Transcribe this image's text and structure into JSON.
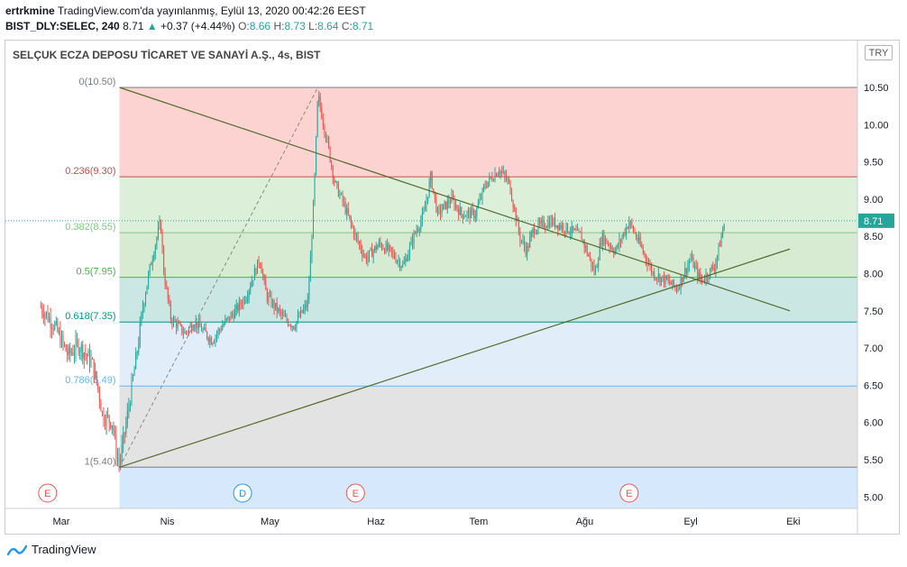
{
  "header": {
    "author": "ertrkmine",
    "published": "TradingView.com'da yayınlanmış, Eylül 13, 2020 00:42:26 EEST",
    "symbol": "BIST_DLY:SELEC, 240",
    "last": "8.71",
    "change_arrow": "▲",
    "change": "+0.37 (+4.44%)",
    "o_label": "O:",
    "o_value": "8.66",
    "h_label": "H:",
    "h_value": "8.73",
    "l_label": "L:",
    "l_value": "8.64",
    "c_label": "C:",
    "c_value": "8.71"
  },
  "chart_title": "SELÇUK ECZA DEPOSU TİCARET VE SANAYİ A.Ş., 4s, BIST",
  "currency_button": "TRY",
  "footer": {
    "brand": "TradingView"
  },
  "colors": {
    "up": "#26a69a",
    "down": "#ef5350",
    "trendline": "#556b2f"
  },
  "chart_data": {
    "type": "candlestick",
    "x_ticks": [
      "Mar",
      "Nis",
      "May",
      "Haz",
      "Tem",
      "Ağu",
      "Eyl",
      "Eki"
    ],
    "y_ticks": [
      "5.00",
      "5.50",
      "6.00",
      "6.50",
      "7.00",
      "7.50",
      "8.00",
      "8.50",
      "9.00",
      "9.50",
      "10.00",
      "10.50"
    ],
    "ylim": [
      4.9,
      10.75
    ],
    "last_price": "8.71",
    "fibonacci": [
      {
        "label": "0(10.50)",
        "price": 10.5,
        "line": "#787b86",
        "band": "#fcd3d0"
      },
      {
        "label": "0.236(9.30)",
        "price": 9.3,
        "line": "#c0504d",
        "band": "#dcefd9"
      },
      {
        "label": "0.382(8.55)",
        "price": 8.55,
        "line": "#81c784",
        "band": "#d7ebd2"
      },
      {
        "label": "0.5(7.95)",
        "price": 7.95,
        "line": "#4caf50",
        "band": "#cbe7e3"
      },
      {
        "label": "0.618(7.35)",
        "price": 7.35,
        "line": "#009688",
        "band": "#e1eefa"
      },
      {
        "label": "0.786(6.49)",
        "price": 6.49,
        "line": "#64b5f6",
        "band": "#e3e3e3"
      },
      {
        "label": "1(5.40)",
        "price": 5.4,
        "line": "#787b86",
        "band": "#d6e8fb"
      }
    ],
    "trendlines": [
      {
        "from": [
          "Mar 18",
          10.5
        ],
        "to": [
          "Eyl 30",
          7.5
        ],
        "desc": "descending"
      },
      {
        "from": [
          "Mar 18",
          5.4
        ],
        "to": [
          "Eyl 30",
          8.33
        ],
        "desc": "ascending"
      }
    ],
    "events": [
      {
        "date": "Şub 26",
        "letter": "E"
      },
      {
        "date": "Nis 23",
        "letter": "D"
      },
      {
        "date": "May 26",
        "letter": "E"
      },
      {
        "date": "Ağu 14",
        "letter": "E"
      }
    ],
    "price_path": [
      [
        "Şub 24",
        7.55
      ],
      [
        "Şub 28",
        7.3
      ],
      [
        "Mar 3",
        6.9
      ],
      [
        "Mar 6",
        7.05
      ],
      [
        "Mar 10",
        6.8
      ],
      [
        "Mar 12",
        6.4
      ],
      [
        "Mar 13",
        6.1
      ],
      [
        "Mar 16",
        6.0
      ],
      [
        "Mar 17",
        5.6
      ],
      [
        "Mar 18",
        5.45
      ],
      [
        "Mar 20",
        6.0
      ],
      [
        "Mar 23",
        6.9
      ],
      [
        "Mar 25",
        7.6
      ],
      [
        "Mar 27",
        8.1
      ],
      [
        "Mar 30",
        8.7
      ],
      [
        "Mar 31",
        8.0
      ],
      [
        "Nis 2",
        7.4
      ],
      [
        "Nis 6",
        7.2
      ],
      [
        "Nis 9",
        7.35
      ],
      [
        "Nis 14",
        7.1
      ],
      [
        "Nis 17",
        7.3
      ],
      [
        "Nis 21",
        7.5
      ],
      [
        "Nis 24",
        7.7
      ],
      [
        "Nis 28",
        8.2
      ],
      [
        "Nis 30",
        7.7
      ],
      [
        "May 5",
        7.4
      ],
      [
        "May 8",
        7.3
      ],
      [
        "May 12",
        7.6
      ],
      [
        "May 13",
        8.3
      ],
      [
        "May 14",
        9.2
      ],
      [
        "May 15",
        10.4
      ],
      [
        "May 18",
        9.7
      ],
      [
        "May 20",
        9.2
      ],
      [
        "May 22",
        9.0
      ],
      [
        "May 26",
        8.5
      ],
      [
        "May 29",
        8.2
      ],
      [
        "Haz 2",
        8.4
      ],
      [
        "Haz 5",
        8.3
      ],
      [
        "Haz 9",
        8.1
      ],
      [
        "Haz 12",
        8.5
      ],
      [
        "Haz 15",
        8.8
      ],
      [
        "Haz 17",
        9.3
      ],
      [
        "Haz 19",
        8.8
      ],
      [
        "Haz 23",
        9.0
      ],
      [
        "Haz 26",
        8.8
      ],
      [
        "Haz 30",
        8.8
      ],
      [
        "Tem 3",
        9.2
      ],
      [
        "Tem 7",
        9.4
      ],
      [
        "Tem 10",
        9.2
      ],
      [
        "Tem 13",
        8.5
      ],
      [
        "Tem 15",
        8.3
      ],
      [
        "Tem 17",
        8.6
      ],
      [
        "Tem 22",
        8.7
      ],
      [
        "Tem 27",
        8.6
      ],
      [
        "Tem 31",
        8.5
      ],
      [
        "Ağu 4",
        8.0
      ],
      [
        "Ağu 6",
        8.5
      ],
      [
        "Ağu 10",
        8.3
      ],
      [
        "Ağu 14",
        8.7
      ],
      [
        "Ağu 18",
        8.3
      ],
      [
        "Ağu 21",
        8.0
      ],
      [
        "Ağu 25",
        7.9
      ],
      [
        "Ağu 28",
        7.8
      ],
      [
        "Eyl 1",
        8.2
      ],
      [
        "Eyl 4",
        7.9
      ],
      [
        "Eyl 8",
        8.1
      ],
      [
        "Eyl 10",
        8.5
      ],
      [
        "Eyl 11",
        8.71
      ]
    ]
  }
}
